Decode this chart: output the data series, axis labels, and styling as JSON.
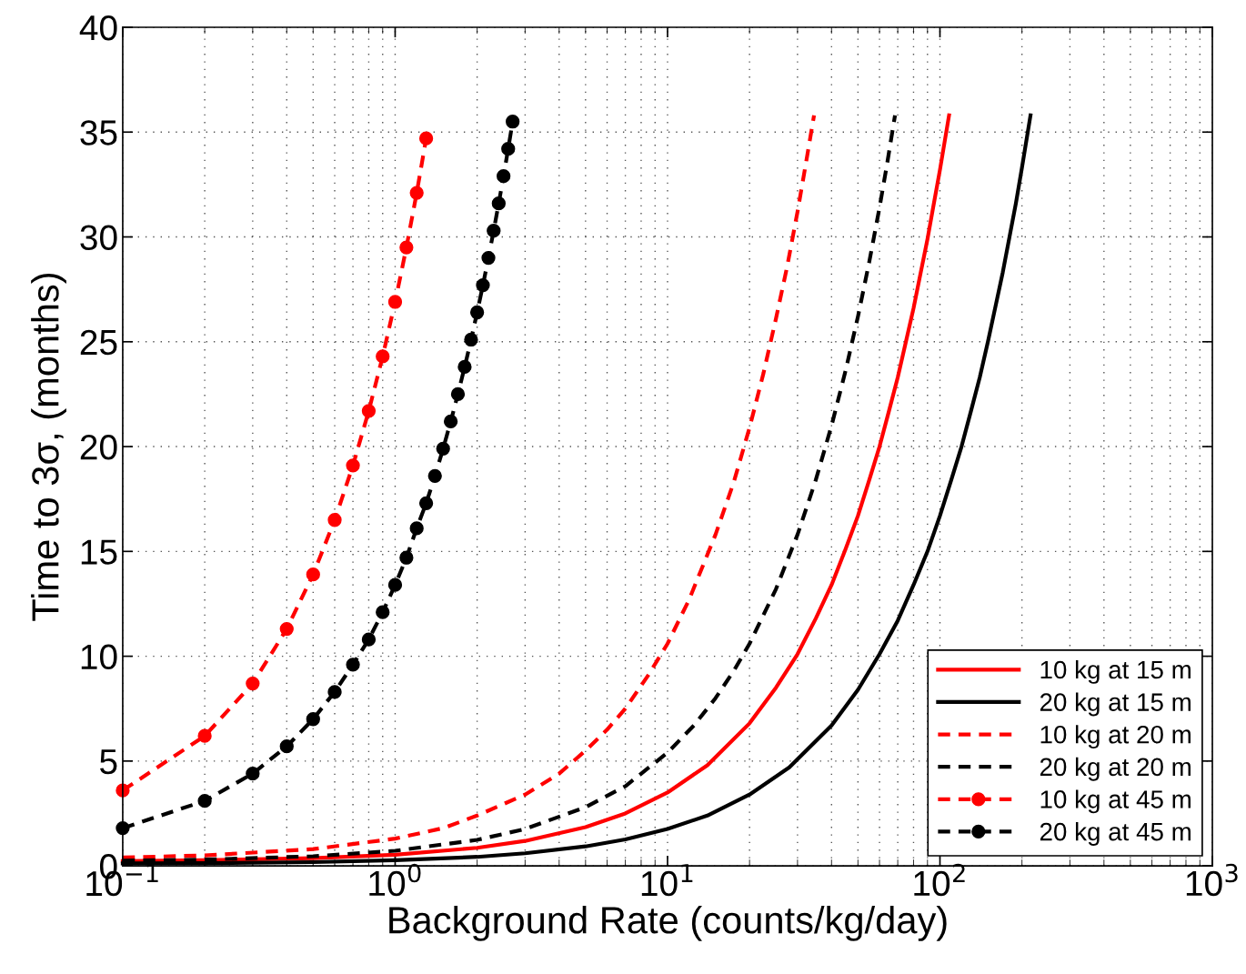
{
  "chart_data": {
    "type": "line",
    "xlabel": "Background Rate (counts/kg/day)",
    "ylabel": "Time to 3σ, (months)",
    "log": "x",
    "xlim": [
      0.1,
      1000
    ],
    "xticks": [
      {
        "value": 0.1,
        "label": "10$^{−1}$"
      },
      {
        "value": 1,
        "label": "10$^{0}$"
      },
      {
        "value": 10,
        "label": "10$^{1}$"
      },
      {
        "value": 100,
        "label": "10$^{2}$"
      },
      {
        "value": 1000,
        "label": "10$^{3}$"
      }
    ],
    "ylim": [
      0,
      40
    ],
    "yticks": [
      0,
      5,
      10,
      15,
      20,
      25,
      30,
      35,
      40
    ],
    "grid": true,
    "legend": "bottom right",
    "series": [
      {
        "name": "10 kg at 15 m",
        "color": "#ff0000",
        "line_style": "solid",
        "marker": "none",
        "x": [
          0.1,
          0.2,
          0.5,
          1,
          2,
          3,
          5,
          7,
          10,
          14,
          20,
          25,
          30,
          35,
          40,
          45,
          50,
          55,
          60,
          65,
          70,
          75,
          80,
          85,
          90,
          95,
          100,
          108
        ],
        "values": [
          0.23,
          0.27,
          0.37,
          0.53,
          0.86,
          1.19,
          1.85,
          2.5,
          3.5,
          4.8,
          6.8,
          8.5,
          10.1,
          11.8,
          13.4,
          15.1,
          16.7,
          18.4,
          20.0,
          21.7,
          23.3,
          25.0,
          26.6,
          28.3,
          29.9,
          31.6,
          33.2,
          35.8
        ]
      },
      {
        "name": "20 kg at 15 m",
        "color": "#000000",
        "line_style": "solid",
        "marker": "none",
        "x": [
          0.1,
          0.2,
          0.5,
          1,
          2,
          3,
          5,
          7,
          10,
          14,
          20,
          28,
          40,
          50,
          60,
          70,
          80,
          90,
          100,
          110,
          120,
          130,
          140,
          150,
          160,
          170,
          180,
          190,
          200,
          215
        ],
        "values": [
          0.12,
          0.13,
          0.18,
          0.27,
          0.43,
          0.6,
          0.93,
          1.26,
          1.76,
          2.4,
          3.4,
          4.7,
          6.7,
          8.4,
          10.1,
          11.7,
          13.4,
          15.0,
          16.7,
          18.4,
          20.0,
          21.7,
          23.3,
          25.0,
          26.7,
          28.3,
          30.0,
          31.6,
          33.3,
          35.8
        ]
      },
      {
        "name": "10 kg at 20 m",
        "color": "#ff0000",
        "line_style": "dashed",
        "marker": "none",
        "x": [
          0.1,
          0.2,
          0.5,
          1,
          1.5,
          2,
          3,
          4,
          5,
          6,
          7,
          8.5,
          10,
          12,
          15,
          17.5,
          20,
          22.5,
          25,
          27.5,
          30,
          32,
          34.5
        ],
        "values": [
          0.4,
          0.5,
          0.8,
          1.3,
          1.8,
          2.4,
          3.4,
          4.4,
          5.5,
          6.5,
          7.5,
          9.1,
          10.6,
          12.7,
          15.8,
          18.3,
          20.9,
          23.5,
          26.1,
          28.6,
          31.2,
          33.3,
          35.8
        ]
      },
      {
        "name": "20 kg at 20 m",
        "color": "#000000",
        "line_style": "dashed",
        "marker": "none",
        "x": [
          0.1,
          0.2,
          0.5,
          1,
          2,
          3,
          5,
          7,
          10,
          12.5,
          15,
          17.5,
          20,
          25,
          30,
          35,
          40,
          45,
          50,
          55,
          60,
          64,
          68.4
        ],
        "values": [
          0.25,
          0.3,
          0.46,
          0.72,
          1.24,
          1.76,
          2.8,
          3.8,
          5.4,
          6.7,
          8.0,
          9.3,
          10.6,
          13.2,
          15.8,
          18.4,
          21.0,
          23.6,
          26.2,
          28.8,
          31.4,
          33.5,
          35.8
        ]
      },
      {
        "name": "10 kg at 45 m",
        "color": "#ff0000",
        "line_style": "dashed",
        "marker": "circle",
        "x": [
          0.1,
          0.2,
          0.3,
          0.4,
          0.5,
          0.6,
          0.7,
          0.8,
          0.9,
          1.0,
          1.1,
          1.2,
          1.3
        ],
        "values": [
          3.6,
          6.2,
          8.7,
          11.3,
          13.9,
          16.5,
          19.1,
          21.7,
          24.3,
          26.9,
          29.5,
          32.1,
          34.7
        ]
      },
      {
        "name": "20 kg at 45 m",
        "color": "#000000",
        "line_style": "dashed",
        "marker": "circle",
        "x": [
          0.1,
          0.2,
          0.3,
          0.4,
          0.5,
          0.6,
          0.7,
          0.8,
          0.9,
          1.0,
          1.1,
          1.2,
          1.3,
          1.4,
          1.5,
          1.6,
          1.7,
          1.8,
          1.9,
          2.0,
          2.1,
          2.2,
          2.3,
          2.4,
          2.5,
          2.6,
          2.7
        ],
        "values": [
          1.8,
          3.1,
          4.4,
          5.7,
          7.0,
          8.3,
          9.6,
          10.8,
          12.1,
          13.4,
          14.7,
          16.1,
          17.3,
          18.6,
          19.9,
          21.2,
          22.5,
          23.8,
          25.1,
          26.4,
          27.7,
          29.0,
          30.3,
          31.6,
          32.9,
          34.2,
          35.5
        ]
      }
    ]
  }
}
